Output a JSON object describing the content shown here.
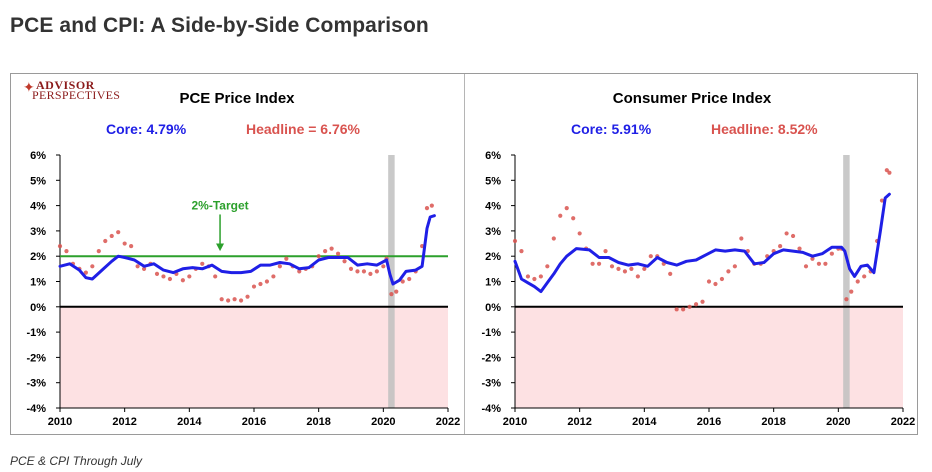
{
  "page": {
    "title": "PCE and CPI: A Side-by-Side Comparison",
    "footnote": "PCE & CPI Through July"
  },
  "logo": {
    "line1": "ADVISOR",
    "line2": "PERSPECTIVES"
  },
  "colors": {
    "core": "#1f1fe6",
    "headline": "#d9534f",
    "target": "#2ca02c",
    "negative_band": "#fde1e3",
    "recession": "#bfbfbf",
    "zero_line": "#000000"
  },
  "chart_data": [
    {
      "type": "line+scatter",
      "title": "PCE Price Index",
      "core_label": "Core: 4.79%",
      "headline_label": "Headline = 6.76%",
      "annotation": "2%-Target",
      "target_value": 2,
      "recession_band": [
        2020.15,
        2020.35
      ],
      "xlim": [
        2010,
        2022
      ],
      "ylim": [
        -4,
        6
      ],
      "x_ticks": [
        "2010",
        "2012",
        "2014",
        "2016",
        "2018",
        "2020",
        "2022"
      ],
      "y_ticks": [
        "6%",
        "5%",
        "4%",
        "3%",
        "2%",
        "1%",
        "0%",
        "-1%",
        "-2%",
        "-3%",
        "-4%"
      ],
      "series": [
        {
          "name": "Core",
          "style": "line",
          "x": [
            2010.0,
            2010.3,
            2010.6,
            2010.8,
            2011.0,
            2011.3,
            2011.6,
            2011.8,
            2012.0,
            2012.3,
            2012.6,
            2012.9,
            2013.2,
            2013.5,
            2013.8,
            2014.1,
            2014.4,
            2014.7,
            2015.0,
            2015.3,
            2015.6,
            2015.9,
            2016.2,
            2016.5,
            2016.8,
            2017.1,
            2017.4,
            2017.7,
            2018.0,
            2018.3,
            2018.6,
            2018.9,
            2019.2,
            2019.5,
            2019.8,
            2020.1,
            2020.2,
            2020.3,
            2020.5,
            2020.7,
            2021.0,
            2021.2,
            2021.35,
            2021.45,
            2021.58
          ],
          "values": [
            1.6,
            1.7,
            1.45,
            1.15,
            1.1,
            1.45,
            1.8,
            2.0,
            1.95,
            1.85,
            1.6,
            1.7,
            1.45,
            1.35,
            1.5,
            1.55,
            1.5,
            1.65,
            1.4,
            1.35,
            1.35,
            1.4,
            1.65,
            1.65,
            1.75,
            1.7,
            1.5,
            1.55,
            1.85,
            1.95,
            1.95,
            1.95,
            1.65,
            1.7,
            1.65,
            1.85,
            1.3,
            0.9,
            1.05,
            1.4,
            1.45,
            1.6,
            3.1,
            3.55,
            3.6
          ]
        },
        {
          "name": "Headline",
          "style": "dots",
          "x": [
            2010.0,
            2010.2,
            2010.4,
            2010.6,
            2010.8,
            2011.0,
            2011.2,
            2011.4,
            2011.6,
            2011.8,
            2012.0,
            2012.2,
            2012.4,
            2012.6,
            2012.8,
            2013.0,
            2013.2,
            2013.4,
            2013.6,
            2013.8,
            2014.0,
            2014.2,
            2014.4,
            2014.6,
            2014.8,
            2015.0,
            2015.2,
            2015.4,
            2015.6,
            2015.8,
            2016.0,
            2016.2,
            2016.4,
            2016.6,
            2016.8,
            2017.0,
            2017.2,
            2017.4,
            2017.6,
            2017.8,
            2018.0,
            2018.2,
            2018.4,
            2018.6,
            2018.8,
            2019.0,
            2019.2,
            2019.4,
            2019.6,
            2019.8,
            2020.0,
            2020.1,
            2020.25,
            2020.4,
            2020.6,
            2020.8,
            2021.0,
            2021.2,
            2021.35,
            2021.5
          ],
          "values": [
            2.4,
            2.2,
            1.7,
            1.5,
            1.35,
            1.6,
            2.2,
            2.6,
            2.8,
            2.95,
            2.5,
            2.4,
            1.6,
            1.5,
            1.7,
            1.3,
            1.2,
            1.1,
            1.3,
            1.05,
            1.2,
            1.5,
            1.7,
            1.6,
            1.2,
            0.3,
            0.25,
            0.3,
            0.25,
            0.4,
            0.8,
            0.9,
            1.0,
            1.2,
            1.6,
            1.9,
            1.6,
            1.4,
            1.5,
            1.6,
            2.0,
            2.2,
            2.3,
            2.1,
            1.8,
            1.5,
            1.4,
            1.4,
            1.3,
            1.4,
            1.6,
            1.9,
            0.5,
            0.6,
            1.0,
            1.1,
            1.4,
            2.4,
            3.9,
            4.0
          ]
        }
      ]
    },
    {
      "type": "line+scatter",
      "title": "Consumer Price Index",
      "core_label": "Core: 5.91%",
      "headline_label": "Headline: 8.52%",
      "recession_band": [
        2020.15,
        2020.35
      ],
      "xlim": [
        2010,
        2022
      ],
      "ylim": [
        -4,
        6
      ],
      "x_ticks": [
        "2010",
        "2012",
        "2014",
        "2016",
        "2018",
        "2020",
        "2022"
      ],
      "y_ticks": [
        "6%",
        "5%",
        "4%",
        "3%",
        "2%",
        "1%",
        "0%",
        "-1%",
        "-2%",
        "-3%",
        "-4%"
      ],
      "series": [
        {
          "name": "Core",
          "style": "line",
          "x": [
            2010.0,
            2010.2,
            2010.4,
            2010.6,
            2010.8,
            2011.0,
            2011.2,
            2011.4,
            2011.6,
            2011.9,
            2012.3,
            2012.6,
            2012.9,
            2013.2,
            2013.5,
            2013.8,
            2014.1,
            2014.4,
            2014.7,
            2015.0,
            2015.3,
            2015.6,
            2015.9,
            2016.2,
            2016.5,
            2016.8,
            2017.1,
            2017.4,
            2017.7,
            2018.0,
            2018.3,
            2018.6,
            2018.9,
            2019.2,
            2019.5,
            2019.8,
            2020.1,
            2020.2,
            2020.35,
            2020.5,
            2020.7,
            2020.9,
            2021.1,
            2021.3,
            2021.45,
            2021.58
          ],
          "values": [
            1.8,
            1.1,
            0.95,
            0.8,
            0.6,
            0.95,
            1.3,
            1.7,
            2.0,
            2.3,
            2.25,
            1.95,
            1.95,
            1.75,
            1.65,
            1.7,
            1.6,
            1.95,
            1.75,
            1.65,
            1.8,
            1.85,
            2.05,
            2.25,
            2.2,
            2.25,
            2.2,
            1.7,
            1.75,
            2.1,
            2.25,
            2.2,
            2.15,
            2.0,
            2.1,
            2.35,
            2.35,
            2.2,
            1.5,
            1.2,
            1.6,
            1.65,
            1.35,
            3.0,
            4.3,
            4.45
          ]
        },
        {
          "name": "Headline",
          "style": "dots",
          "x": [
            2010.0,
            2010.2,
            2010.4,
            2010.6,
            2010.8,
            2011.0,
            2011.2,
            2011.4,
            2011.6,
            2011.8,
            2012.0,
            2012.2,
            2012.4,
            2012.6,
            2012.8,
            2013.0,
            2013.2,
            2013.4,
            2013.6,
            2013.8,
            2014.0,
            2014.2,
            2014.4,
            2014.6,
            2014.8,
            2015.0,
            2015.2,
            2015.4,
            2015.6,
            2015.8,
            2016.0,
            2016.2,
            2016.4,
            2016.6,
            2016.8,
            2017.0,
            2017.2,
            2017.4,
            2017.6,
            2017.8,
            2018.0,
            2018.2,
            2018.4,
            2018.6,
            2018.8,
            2019.0,
            2019.2,
            2019.4,
            2019.6,
            2019.8,
            2020.0,
            2020.1,
            2020.25,
            2020.4,
            2020.6,
            2020.8,
            2021.0,
            2021.2,
            2021.35,
            2021.5,
            2021.58
          ],
          "values": [
            2.6,
            2.2,
            1.2,
            1.1,
            1.2,
            1.6,
            2.7,
            3.6,
            3.9,
            3.5,
            2.9,
            2.3,
            1.7,
            1.7,
            2.2,
            1.6,
            1.5,
            1.4,
            1.5,
            1.2,
            1.5,
            2.0,
            2.0,
            1.7,
            1.3,
            -0.1,
            -0.1,
            0.0,
            0.1,
            0.2,
            1.0,
            0.9,
            1.1,
            1.4,
            1.6,
            2.7,
            2.2,
            1.7,
            1.7,
            2.0,
            2.2,
            2.4,
            2.9,
            2.8,
            2.3,
            1.6,
            1.9,
            1.7,
            1.7,
            2.1,
            2.3,
            2.3,
            0.3,
            0.6,
            1.0,
            1.2,
            1.4,
            2.6,
            4.2,
            5.4,
            5.3
          ]
        }
      ]
    }
  ]
}
